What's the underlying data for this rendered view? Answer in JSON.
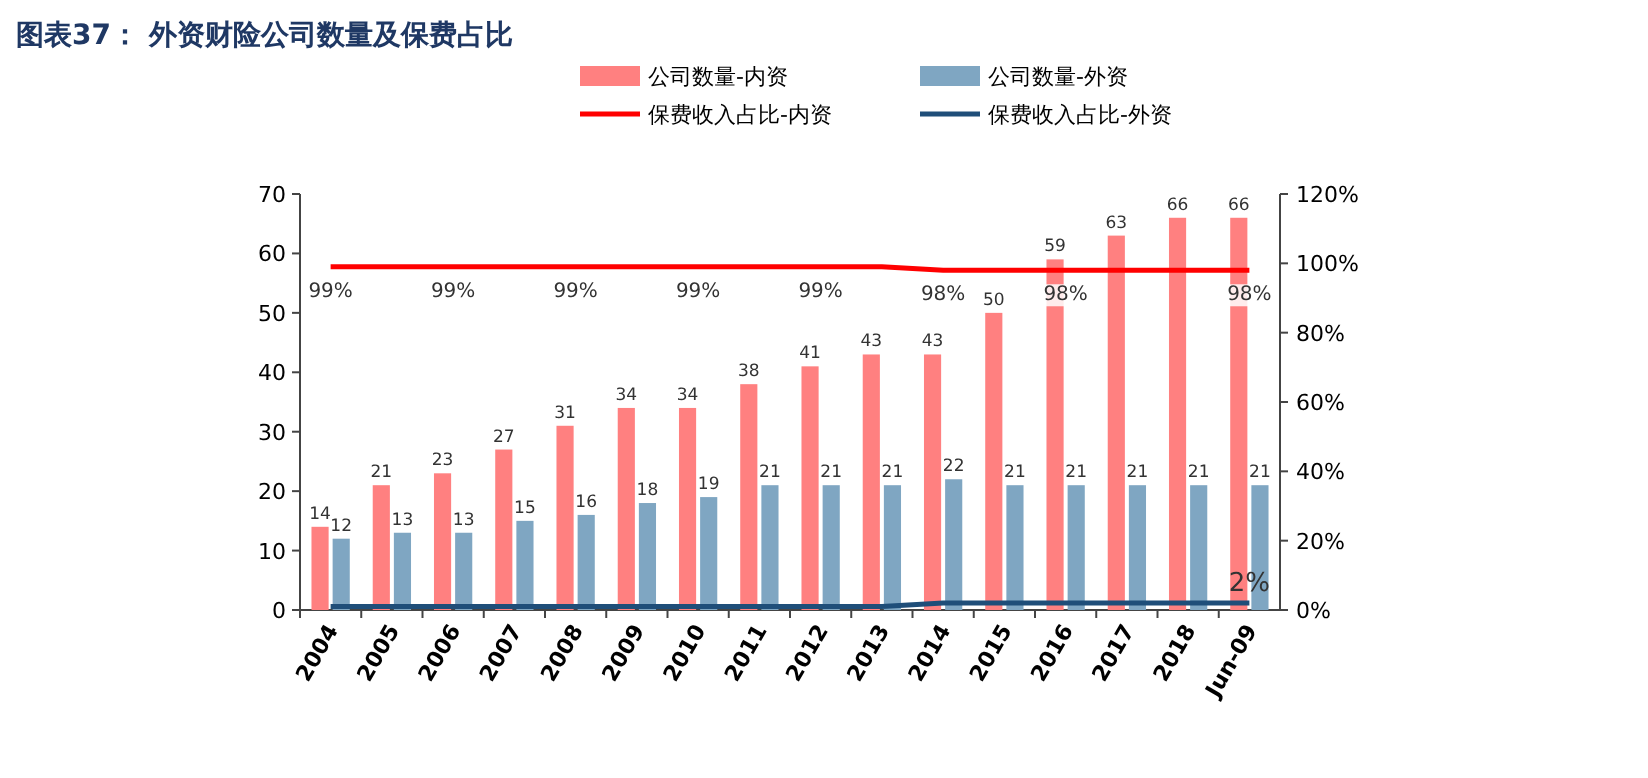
{
  "chart_data": {
    "type": "bar",
    "title": "图表37： 外资财险公司数量及保费占比",
    "categories": [
      "2004",
      "2005",
      "2006",
      "2007",
      "2008",
      "2009",
      "2010",
      "2011",
      "2012",
      "2013",
      "2014",
      "2015",
      "2016",
      "2017",
      "2018",
      "Jun-09"
    ],
    "series": [
      {
        "name": "公司数量-内资",
        "color": "#ff8080",
        "values": [
          14,
          21,
          23,
          27,
          31,
          34,
          34,
          38,
          41,
          43,
          43,
          50,
          59,
          63,
          66,
          66
        ],
        "value_labels": [
          "14",
          "21",
          "23",
          "27",
          "31",
          "34",
          "34",
          "38",
          "41",
          "43",
          "43",
          "50",
          "59",
          "63",
          "66",
          "66"
        ]
      },
      {
        "name": "公司数量-外资",
        "color": "#7fa6c2",
        "values": [
          12,
          13,
          13,
          15,
          16,
          18,
          19,
          21,
          21,
          21,
          22,
          21,
          21,
          21,
          21,
          21
        ],
        "value_labels": [
          "12",
          "13",
          "13",
          "15",
          "16",
          "18",
          "19",
          "21",
          "21",
          "21",
          "22",
          "21",
          "21",
          "21",
          "21",
          "21"
        ]
      },
      {
        "name": "保费收入占比-内资",
        "type": "line",
        "axis": "y2",
        "color": "#ff0000",
        "values": [
          99,
          99,
          99,
          99,
          99,
          99,
          99,
          99,
          99,
          99,
          98,
          98,
          98,
          98,
          98,
          98
        ],
        "value_labels": [
          "99%",
          null,
          "99%",
          null,
          "99%",
          null,
          "99%",
          null,
          "99%",
          null,
          "98%",
          null,
          "98%",
          null,
          null,
          "98%"
        ]
      },
      {
        "name": "保费收入占比-外资",
        "type": "line",
        "axis": "y2",
        "color": "#1f4e79",
        "values": [
          1,
          1,
          1,
          1,
          1,
          1,
          1,
          1,
          1,
          1,
          2,
          2,
          2,
          2,
          2,
          2
        ],
        "value_labels": [
          null,
          null,
          null,
          null,
          null,
          null,
          null,
          null,
          null,
          null,
          null,
          null,
          null,
          null,
          null,
          "2%"
        ]
      }
    ],
    "ylim": [
      0,
      70
    ],
    "yticks": [
      0,
      10,
      20,
      30,
      40,
      50,
      60,
      70
    ],
    "y2lim": [
      0,
      120
    ],
    "y2ticks": [
      {
        "value": 0,
        "label": "0%"
      },
      {
        "value": 20,
        "label": "20%"
      },
      {
        "value": 40,
        "label": "40%"
      },
      {
        "value": 60,
        "label": "60%"
      },
      {
        "value": 80,
        "label": "80%"
      },
      {
        "value": 100,
        "label": "100%"
      },
      {
        "value": 120,
        "label": "120%"
      }
    ],
    "legend": "top",
    "grid": false
  }
}
